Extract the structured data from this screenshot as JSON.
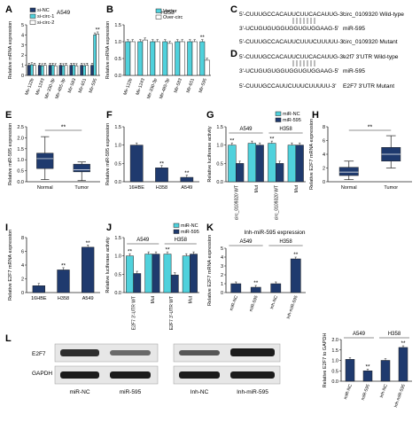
{
  "colors": {
    "navy": "#1f3a6e",
    "cyan": "#4fd1dc",
    "ink": "#222222"
  },
  "panel_labels": [
    "A",
    "B",
    "C",
    "D",
    "E",
    "F",
    "G",
    "H",
    "I",
    "J",
    "K",
    "L"
  ],
  "chart_data": [
    {
      "panel": "A",
      "type": "bar",
      "subtitle": "A549",
      "ylabel": "Relative mRNA expression",
      "ylim": [
        0,
        5
      ],
      "yticks": [
        0,
        1,
        2,
        3,
        4,
        5
      ],
      "categories": [
        "Mir-122b",
        "Mir-1243",
        "Mir-330-3p",
        "Mir-485-3p",
        "Mir-583",
        "Mir-651",
        "Mir-595"
      ],
      "series": [
        {
          "name": "si-NC",
          "color": "navy",
          "values": [
            1,
            1,
            1,
            1,
            1,
            1,
            1
          ]
        },
        {
          "name": "si-circ-1",
          "color": "cyan",
          "values": [
            1.05,
            0.95,
            1.0,
            0.95,
            1.0,
            0.95,
            4.0
          ]
        },
        {
          "name": "si-circ-2",
          "color": "white",
          "values": [
            1.0,
            1.0,
            0.95,
            1.0,
            0.95,
            1.0,
            4.1
          ]
        }
      ],
      "legend": "top-left",
      "annotations": [
        {
          "category": "Mir-595",
          "text": "**"
        }
      ]
    },
    {
      "panel": "B",
      "type": "bar",
      "subtitle": "H358",
      "ylabel": "Relative mRNA expression",
      "ylim": [
        0,
        1.5
      ],
      "yticks": [
        0.0,
        0.5,
        1.0,
        1.5
      ],
      "categories": [
        "Mir-122b",
        "Mir-1243",
        "Mir-330-3p",
        "Mir-485-3p",
        "Mir-583",
        "Mir-651",
        "Mir-595"
      ],
      "series": [
        {
          "name": "Vector",
          "color": "cyan",
          "values": [
            1,
            1,
            1,
            1,
            1,
            1,
            1
          ]
        },
        {
          "name": "Over-circ",
          "color": "white",
          "values": [
            1.0,
            1.05,
            1.0,
            0.95,
            1.0,
            1.0,
            0.45
          ]
        }
      ],
      "legend": "top-right",
      "annotations": [
        {
          "category": "Mir-595",
          "text": "**"
        }
      ]
    },
    {
      "panel": "E",
      "type": "box",
      "ylabel": "Relative miR-595 expression",
      "ylim": [
        0,
        2.5
      ],
      "yticks": [
        0.0,
        0.5,
        1.0,
        1.5,
        2.0,
        2.5
      ],
      "categories": [
        "Normal",
        "Tumor"
      ],
      "boxes": [
        {
          "min": 0.1,
          "q1": 0.6,
          "median": 1.05,
          "q3": 1.3,
          "max": 2.05
        },
        {
          "min": 0.05,
          "q1": 0.45,
          "median": 0.55,
          "q3": 0.8,
          "max": 0.9
        }
      ],
      "annotations": [
        {
          "text": "**"
        }
      ]
    },
    {
      "panel": "F",
      "type": "bar",
      "ylabel": "Relative miR-595 expression",
      "ylim": [
        0,
        1.5
      ],
      "yticks": [
        0.0,
        0.5,
        1.0,
        1.5
      ],
      "categories": [
        "16HBE",
        "H358",
        "A549"
      ],
      "series": [
        {
          "name": "",
          "color": "navy",
          "values": [
            1.0,
            0.38,
            0.12
          ]
        }
      ],
      "annotations": [
        {
          "category": "H358",
          "text": "**"
        },
        {
          "category": "A549",
          "text": "**"
        }
      ]
    },
    {
      "panel": "G",
      "type": "bar",
      "ylabel": "Relative luciferase activity",
      "ylim": [
        0,
        1.5
      ],
      "yticks": [
        0.0,
        0.5,
        1.0,
        1.5
      ],
      "groups": [
        "A549",
        "H358"
      ],
      "categories": [
        "circ_0109320 WT",
        "Mut",
        "circ_0109320 WT",
        "Mut"
      ],
      "series": [
        {
          "name": "miR-NC",
          "color": "cyan",
          "values": [
            1.0,
            1.05,
            1.05,
            1.0
          ]
        },
        {
          "name": "miR-595",
          "color": "navy",
          "values": [
            0.5,
            1.0,
            0.5,
            1.0
          ]
        }
      ],
      "legend": "top-right",
      "annotations": [
        {
          "category_index": 0,
          "text": "**"
        },
        {
          "category_index": 2,
          "text": "**"
        }
      ]
    },
    {
      "panel": "H",
      "type": "box",
      "ylabel": "Relative E2F7 mRNA expression",
      "ylim": [
        0,
        8
      ],
      "yticks": [
        0,
        2,
        4,
        6,
        8
      ],
      "categories": [
        "Normal",
        "Tumor"
      ],
      "boxes": [
        {
          "min": 0.3,
          "q1": 0.9,
          "median": 1.4,
          "q3": 2.1,
          "max": 3.0
        },
        {
          "min": 2.0,
          "q1": 3.0,
          "median": 4.0,
          "q3": 5.0,
          "max": 6.7
        }
      ],
      "annotations": [
        {
          "text": "**"
        }
      ]
    },
    {
      "panel": "I",
      "type": "bar",
      "ylabel": "Relative E2F7 mRNA expression",
      "ylim": [
        0,
        8
      ],
      "yticks": [
        0,
        2,
        4,
        6,
        8
      ],
      "categories": [
        "16HBE",
        "H358",
        "A549"
      ],
      "series": [
        {
          "name": "",
          "color": "navy",
          "values": [
            1.0,
            3.3,
            6.6
          ]
        }
      ],
      "annotations": [
        {
          "category": "H358",
          "text": "**"
        },
        {
          "category": "A549",
          "text": "**"
        }
      ]
    },
    {
      "panel": "J",
      "type": "bar",
      "ylabel": "Relative luciferase activity",
      "ylim": [
        0,
        1.5
      ],
      "yticks": [
        0.0,
        0.5,
        1.0,
        1.5
      ],
      "groups": [
        "A549",
        "H358"
      ],
      "categories": [
        "E2F7 3'-UTR WT",
        "Mut",
        "E2F7 3'-UTR WT",
        "Mut"
      ],
      "series": [
        {
          "name": "miR-NC",
          "color": "cyan",
          "values": [
            1.0,
            1.05,
            1.05,
            1.0
          ]
        },
        {
          "name": "miR-595",
          "color": "navy",
          "values": [
            0.52,
            1.05,
            0.48,
            1.05
          ]
        }
      ],
      "legend": "top-right",
      "annotations": [
        {
          "category_index": 0,
          "text": "**"
        },
        {
          "category_index": 2,
          "text": "**"
        }
      ]
    },
    {
      "panel": "K",
      "type": "bar",
      "title": "Inh-miR-595 expression",
      "ylabel": "Relative E2F7 mRNA expression",
      "ylim": [
        0,
        5
      ],
      "yticks": [
        0,
        1,
        2,
        3,
        4,
        5
      ],
      "groups": [
        "A549",
        "H358"
      ],
      "categories": [
        "miR-NC",
        "miR-595",
        "Inh-NC",
        "Inh-miR-595"
      ],
      "series": [
        {
          "name": "",
          "color": "navy",
          "values": [
            1.0,
            0.6,
            1.0,
            3.8
          ]
        }
      ],
      "annotations": [
        {
          "category_index": 1,
          "text": "**"
        },
        {
          "category_index": 3,
          "text": "**"
        }
      ]
    },
    {
      "panel": "L",
      "type": "bar",
      "ylabel": "Relative E2F7 to GAPDH",
      "ylim": [
        0,
        2.0
      ],
      "yticks": [
        0.0,
        0.5,
        1.0,
        1.5,
        2.0
      ],
      "groups": [
        "A549",
        "H358"
      ],
      "categories": [
        "miR-NC",
        "miR-595",
        "Inh-NC",
        "Inh-miR-595"
      ],
      "series": [
        {
          "name": "",
          "color": "navy",
          "values": [
            1.05,
            0.5,
            1.0,
            1.62
          ]
        }
      ],
      "annotations": [
        {
          "category_index": 1,
          "text": "**"
        },
        {
          "category_index": 3,
          "text": "**"
        }
      ]
    }
  ],
  "sequences": {
    "C": {
      "rows": [
        {
          "text": "5'-CUUUGCCACAUUCUUCACAUUG-3'",
          "label": "circ_0109320 Wild-type"
        },
        {
          "text": "3'-UCUGUGUGGUGGUGUGGAAG-5'",
          "label": "miR-595"
        },
        {
          "text": "5'-CUUUGCCACAUUCUUUCUUUUU-3'",
          "label": "circ_0109320 Mutant"
        }
      ]
    },
    "D": {
      "rows": [
        {
          "text": "5'-CUUUGCCACAUUCUUCACAUUG-3'",
          "label": "e2f7 3'UTR Wild-type"
        },
        {
          "text": "3'-UCUGUGUGGUGGUGUGGAAG-5'",
          "label": "miR-595"
        },
        {
          "text": "5'-CUUUGCCAUUCUUUCUUUUU-3'",
          "label": "E2F7 3'UTR Mutant"
        }
      ]
    }
  },
  "blot": {
    "rows": [
      "E2F7",
      "GAPDH"
    ],
    "left_lanes": [
      "miR-NC",
      "miR-595"
    ],
    "right_lanes": [
      "Inh-NC",
      "Inh-miR-595"
    ]
  }
}
